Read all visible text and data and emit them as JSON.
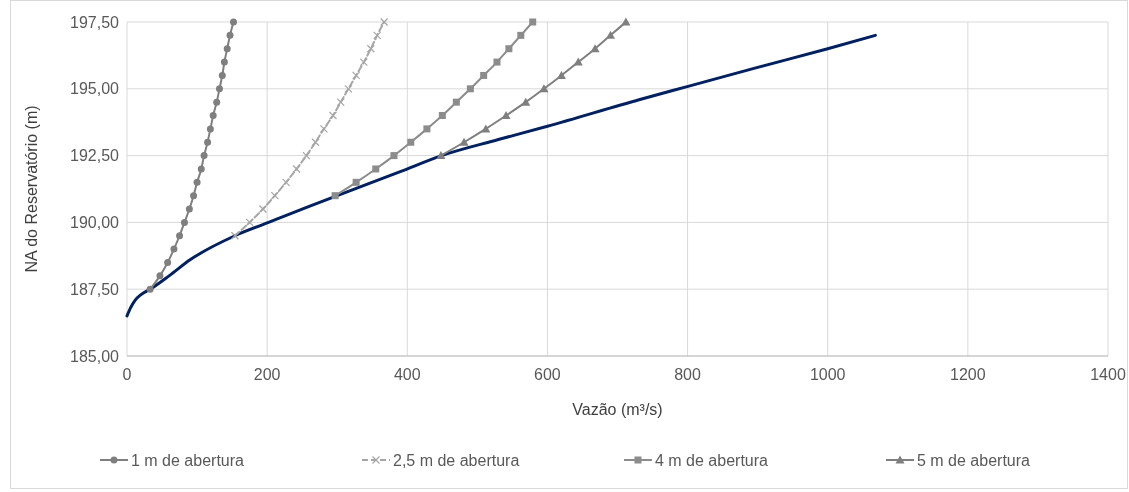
{
  "chart_data": {
    "type": "line",
    "xlabel": "Vazão (m³/s)",
    "ylabel": "NA do Reservatório (m)",
    "xlim": [
      0,
      1400
    ],
    "xticks": [
      0,
      200,
      400,
      600,
      800,
      1000,
      1200,
      1400
    ],
    "ylim": [
      185,
      197.5
    ],
    "yticks": [
      {
        "value": 185,
        "label": "185,00"
      },
      {
        "value": 187.5,
        "label": "187,50"
      },
      {
        "value": 190,
        "label": "190,00"
      },
      {
        "value": 192.5,
        "label": "192,50"
      },
      {
        "value": 195,
        "label": "195,00"
      },
      {
        "value": 197.5,
        "label": "197,50"
      }
    ],
    "grid": true,
    "legend": "bottom",
    "series": [
      {
        "name": "1 m de abertura",
        "color": "#7f7f7f",
        "marker": "circle",
        "line_style": "solid",
        "x": [
          33,
          47,
          58,
          67,
          75,
          82,
          89,
          95,
          100,
          106,
          110,
          115,
          119,
          123,
          128,
          132,
          136,
          139,
          143,
          147,
          152
        ],
        "values": [
          187.5,
          188,
          188.5,
          189,
          189.5,
          190,
          190.5,
          191,
          191.5,
          192,
          192.5,
          193,
          193.5,
          194,
          194.5,
          195,
          195.5,
          196,
          196.5,
          197,
          197.5
        ]
      },
      {
        "name": "2,5 m de abertura",
        "color": "#a6a6a6",
        "marker": "cross",
        "line_style": "dashed",
        "x": [
          154,
          175,
          194,
          211,
          227,
          242,
          256,
          269,
          281,
          294,
          305,
          316,
          327,
          338,
          348,
          357,
          367
        ],
        "values": [
          189.5,
          190,
          190.5,
          191,
          191.5,
          192,
          192.5,
          193,
          193.5,
          194,
          194.5,
          195,
          195.5,
          196,
          196.5,
          197,
          197.5
        ]
      },
      {
        "name": "4 m de abertura",
        "color": "#8c8c8c",
        "marker": "square",
        "line_style": "solid",
        "x": [
          297,
          327,
          355,
          381,
          405,
          428,
          450,
          470,
          490,
          509,
          528,
          545,
          562,
          579
        ],
        "values": [
          191,
          191.5,
          192,
          192.5,
          193,
          193.5,
          194,
          194.5,
          195,
          195.5,
          196,
          196.5,
          197,
          197.5
        ]
      },
      {
        "name": "5 m de abertura",
        "color": "#7f7f7f",
        "marker": "triangle",
        "line_style": "solid",
        "x": [
          448,
          481,
          512,
          541,
          569,
          595,
          620,
          644,
          668,
          690,
          712
        ],
        "values": [
          192.5,
          193,
          193.5,
          194,
          194.5,
          195,
          195.5,
          196,
          196.5,
          197,
          197.5
        ]
      },
      {
        "color": "#002060",
        "marker": "none",
        "line_style": "solid",
        "x": [
          0,
          5,
          12,
          20,
          33,
          60,
          90,
          154,
          202,
          260,
          330,
          390,
          449,
          530,
          600,
          732,
          802,
          900,
          1000,
          1068
        ],
        "values": [
          186.5,
          186.8,
          187.1,
          187.3,
          187.5,
          188,
          188.6,
          189.5,
          190,
          190.6,
          191.3,
          191.9,
          192.5,
          193.1,
          193.6,
          194.6,
          195.1,
          195.8,
          196.5,
          197
        ]
      }
    ]
  }
}
